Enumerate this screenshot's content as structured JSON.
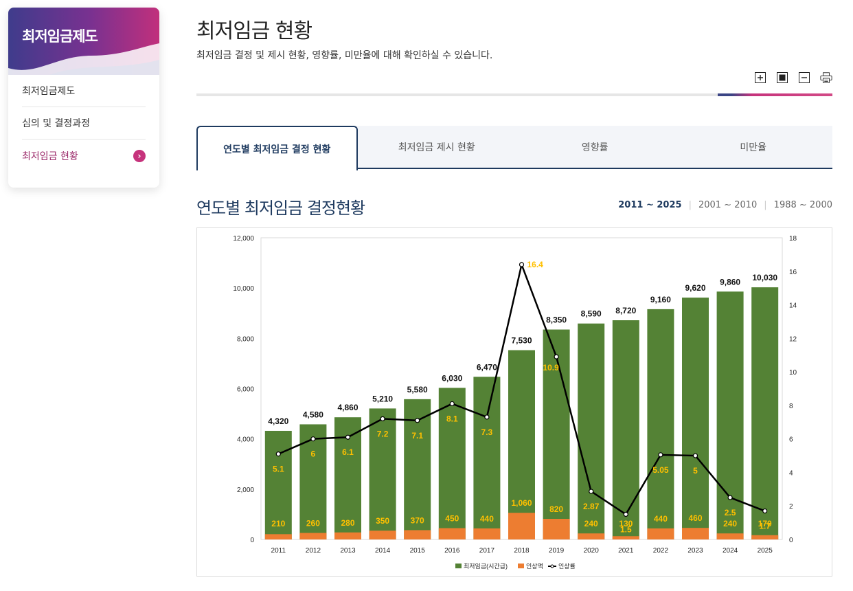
{
  "sidebar": {
    "title": "최저임금제도",
    "items": [
      {
        "label": "최저임금제도"
      },
      {
        "label": "심의 및 결정과정"
      },
      {
        "label": "최저임금 현황"
      }
    ]
  },
  "header": {
    "title": "최저임금 현황",
    "description": "최저임금 결정 및 제시 현황, 영향률, 미만율에 대해 확인하실 수 있습니다."
  },
  "tools": [
    "zoom-in-icon",
    "reset-icon",
    "zoom-out-icon",
    "print-icon"
  ],
  "tabs": [
    {
      "label": "연도별 최저임금 결정 현황"
    },
    {
      "label": "최저임금 제시 현황"
    },
    {
      "label": "영향률"
    },
    {
      "label": "미만율"
    }
  ],
  "section": {
    "title": "연도별 최저임금 결정현황",
    "ranges": [
      "2011 ~ 2025",
      "2001 ~ 2010",
      "1988 ~ 2000"
    ]
  },
  "colors": {
    "wage": "#548235",
    "increase": "#ed7d31",
    "rate_line": "#000000",
    "rate_label": "#ffc000",
    "accent": "#1e3a5f"
  },
  "chart_data": {
    "type": "bar",
    "categories": [
      "2011",
      "2012",
      "2013",
      "2014",
      "2015",
      "2016",
      "2017",
      "2018",
      "2019",
      "2020",
      "2021",
      "2022",
      "2023",
      "2024",
      "2025"
    ],
    "series": [
      {
        "name": "최저임금(시간급)",
        "type": "bar",
        "axis": "left",
        "values": [
          4320,
          4580,
          4860,
          5210,
          5580,
          6030,
          6470,
          7530,
          8350,
          8590,
          8720,
          9160,
          9620,
          9860,
          10030
        ],
        "labels": [
          "4,320",
          "4,580",
          "4,860",
          "5,210",
          "5,580",
          "6,030",
          "6,470",
          "7,530",
          "8,350",
          "8,590",
          "8,720",
          "9,160",
          "9,620",
          "9,860",
          "10,030"
        ]
      },
      {
        "name": "인상액",
        "type": "bar",
        "axis": "left",
        "values": [
          210,
          260,
          280,
          350,
          370,
          450,
          440,
          1060,
          820,
          240,
          130,
          440,
          460,
          240,
          170
        ],
        "labels": [
          "210",
          "260",
          "280",
          "350",
          "370",
          "450",
          "440",
          "1,060",
          "820",
          "240",
          "130",
          "440",
          "460",
          "240",
          "170"
        ]
      },
      {
        "name": "인상률",
        "type": "line",
        "axis": "right",
        "values": [
          5.1,
          6,
          6.1,
          7.2,
          7.1,
          8.1,
          7.3,
          16.4,
          10.9,
          2.87,
          1.5,
          5.05,
          5,
          2.5,
          1.7
        ],
        "labels": [
          "5.1",
          "6",
          "6.1",
          "7.2",
          "7.1",
          "8.1",
          "7.3",
          "16.4",
          "10.9",
          "2.87",
          "1.5",
          "5.05",
          "5",
          "2.5",
          "1.7"
        ]
      }
    ],
    "y_left": {
      "min": 0,
      "max": 12000,
      "ticks": [
        "0",
        "2,000",
        "4,000",
        "6,000",
        "8,000",
        "10,000",
        "12,000"
      ]
    },
    "y_right": {
      "min": 0,
      "max": 18,
      "ticks": [
        "0",
        "2",
        "4",
        "6",
        "8",
        "10",
        "12",
        "14",
        "16",
        "18"
      ]
    },
    "legend": [
      "최저임금(시간급)",
      "인상액",
      "인상률"
    ],
    "legend_position": "bottom"
  }
}
